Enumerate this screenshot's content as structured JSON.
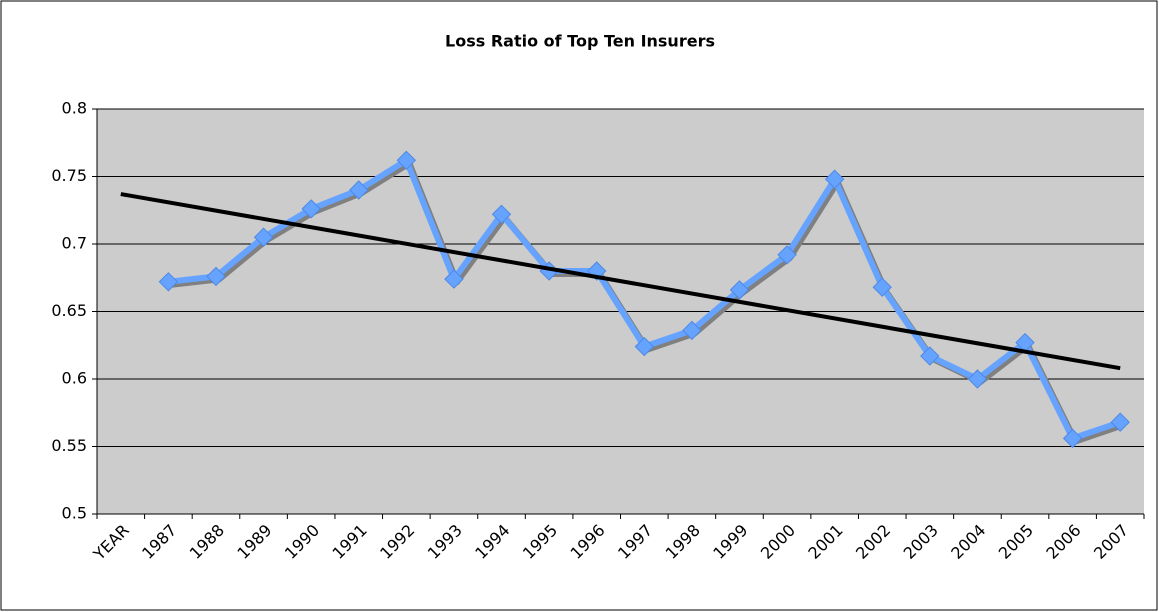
{
  "chart_data": {
    "type": "line",
    "title": "Loss Ratio of Top Ten Insurers",
    "categories": [
      "YEAR",
      "1987",
      "1988",
      "1989",
      "1990",
      "1991",
      "1992",
      "1993",
      "1994",
      "1995",
      "1996",
      "1997",
      "1998",
      "1999",
      "2000",
      "2001",
      "2002",
      "2003",
      "2004",
      "2005",
      "2006",
      "2007"
    ],
    "series": [
      {
        "color": "#66a3ff",
        "values": [
          null,
          0.672,
          0.676,
          0.705,
          0.726,
          0.74,
          0.762,
          0.674,
          0.722,
          0.68,
          0.68,
          0.624,
          0.636,
          0.666,
          0.692,
          0.748,
          0.668,
          0.617,
          0.6,
          0.627,
          0.556,
          0.568
        ]
      }
    ],
    "trendline": {
      "color": "#000000",
      "values": [
        0.737,
        0.608
      ]
    },
    "ylim": [
      0.5,
      0.8
    ],
    "yticks": [
      0.5,
      0.55,
      0.6,
      0.65,
      0.7,
      0.75,
      0.8
    ],
    "grid": true
  }
}
